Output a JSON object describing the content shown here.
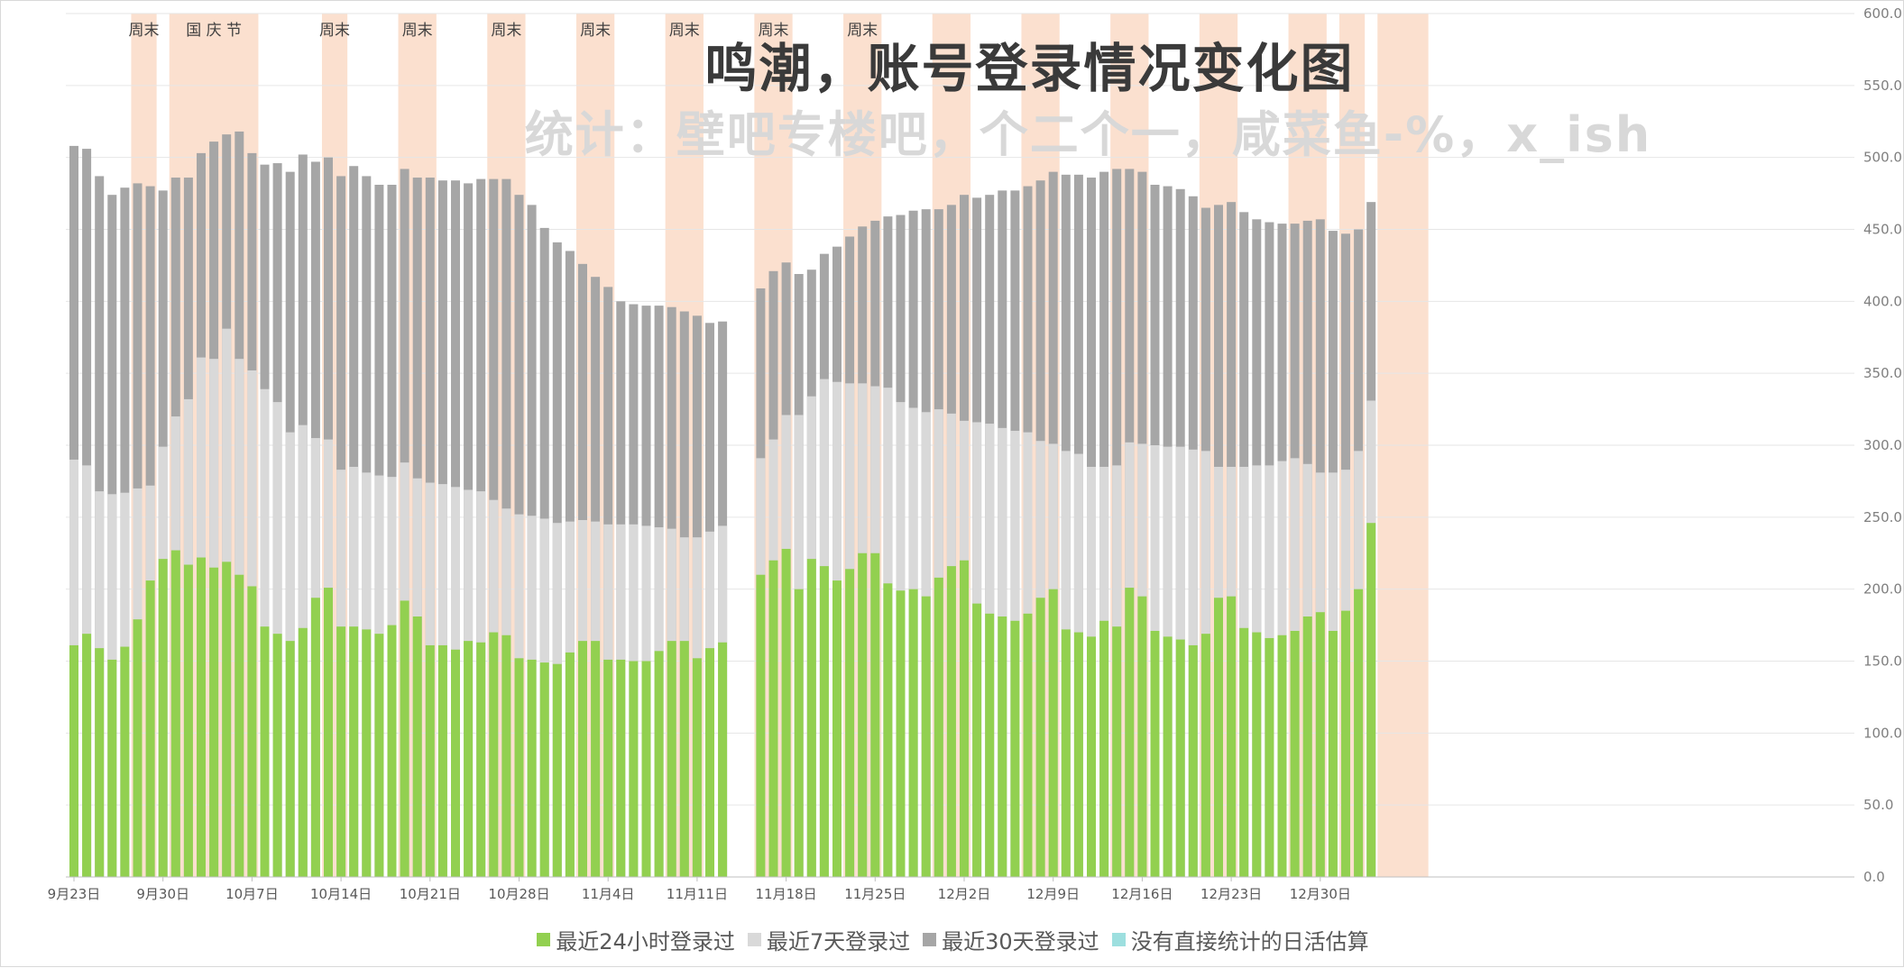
{
  "chart_data": {
    "type": "bar",
    "stacked": true,
    "title": "鸣潮，账号登录情况变化图",
    "subtitle": "统计：壁吧专楼吧，个二个一，咸菜鱼-%，x_ish",
    "x_start_date": "9月23日",
    "x_tick_labels": [
      "9月23日",
      "9月30日",
      "10月7日",
      "10月14日",
      "10月21日",
      "10月28日",
      "11月4日",
      "11月11日",
      "11月18日",
      "11月25日",
      "12月2日",
      "12月9日",
      "12月16日",
      "12月23日",
      "12月30日"
    ],
    "y_tick_labels": [
      "0.0",
      "50.0",
      "100.0",
      "150.0",
      "200.0",
      "250.0",
      "300.0",
      "350.0",
      "400.0",
      "450.0",
      "500.0",
      "550.0",
      "600.0"
    ],
    "ylim": [
      0,
      600
    ],
    "grid": true,
    "legend_position": "bottom",
    "series": [
      {
        "name": "最近24小时登录过",
        "color": "#92d050",
        "values": [
          161,
          169,
          159,
          151,
          160,
          179,
          206,
          221,
          227,
          217,
          222,
          215,
          219,
          210,
          202,
          174,
          169,
          164,
          173,
          194,
          201,
          174,
          174,
          172,
          169,
          175,
          192,
          181,
          161,
          161,
          158,
          164,
          163,
          170,
          168,
          152,
          151,
          149,
          148,
          156,
          164,
          164,
          151,
          151,
          150,
          150,
          157,
          164,
          164,
          152,
          159,
          163,
          null,
          null,
          210,
          220,
          228,
          200,
          221,
          216,
          206,
          214,
          225,
          225,
          204,
          199,
          200,
          195,
          208,
          216,
          220,
          190,
          183,
          181,
          178,
          183,
          194,
          200,
          172,
          170,
          167,
          178,
          174,
          201,
          195,
          171,
          167,
          165,
          161,
          169,
          194,
          195,
          173,
          170,
          166,
          168,
          171,
          181,
          184,
          171,
          185,
          200,
          246
        ]
      },
      {
        "name": "最近7天登录过",
        "color": "#d9d9d9",
        "values": [
          290,
          286,
          268,
          266,
          267,
          270,
          272,
          299,
          320,
          332,
          361,
          360,
          381,
          360,
          352,
          339,
          330,
          309,
          314,
          305,
          304,
          283,
          285,
          281,
          279,
          278,
          288,
          277,
          274,
          273,
          271,
          269,
          268,
          262,
          256,
          252,
          251,
          249,
          246,
          247,
          248,
          247,
          245,
          245,
          245,
          244,
          243,
          242,
          236,
          236,
          240,
          244,
          null,
          null,
          291,
          304,
          321,
          321,
          334,
          346,
          344,
          343,
          343,
          341,
          340,
          330,
          326,
          323,
          325,
          322,
          317,
          316,
          315,
          312,
          310,
          309,
          303,
          301,
          296,
          294,
          285,
          285,
          286,
          302,
          301,
          300,
          299,
          299,
          297,
          296,
          285,
          285,
          285,
          286,
          286,
          289,
          291,
          287,
          281,
          281,
          283,
          296,
          331
        ]
      },
      {
        "name": "最近30天登录过",
        "color": "#a6a6a6",
        "values": [
          508,
          506,
          487,
          474,
          479,
          482,
          480,
          477,
          486,
          486,
          503,
          511,
          516,
          518,
          503,
          495,
          496,
          490,
          502,
          497,
          500,
          487,
          494,
          487,
          481,
          481,
          492,
          486,
          486,
          484,
          484,
          482,
          485,
          485,
          485,
          474,
          467,
          451,
          441,
          435,
          426,
          417,
          410,
          400,
          398,
          397,
          397,
          396,
          393,
          390,
          385,
          386,
          null,
          null,
          409,
          421,
          427,
          419,
          422,
          433,
          438,
          445,
          452,
          456,
          459,
          460,
          463,
          464,
          464,
          467,
          474,
          472,
          474,
          477,
          477,
          480,
          484,
          490,
          488,
          488,
          486,
          490,
          492,
          492,
          490,
          481,
          480,
          478,
          473,
          465,
          467,
          469,
          462,
          457,
          455,
          454,
          454,
          456,
          457,
          449,
          447,
          450,
          469
        ]
      },
      {
        "name": "没有直接统计的日活估算",
        "color": "#9ddfdf",
        "values": []
      }
    ],
    "annotations": [
      {
        "label": "周末",
        "band_day_start": 5,
        "band_day_end": 6
      },
      {
        "label": "国 庆 节",
        "band_day_start": 8,
        "band_day_end": 14
      },
      {
        "label": "周末",
        "band_day_start": 20,
        "band_day_end": 21
      },
      {
        "label": "周末",
        "band_day_start": 26,
        "band_day_end": 28
      },
      {
        "label": "周末",
        "band_day_start": 33,
        "band_day_end": 35
      },
      {
        "label": "周末",
        "band_day_start": 40,
        "band_day_end": 42
      },
      {
        "label": "周末",
        "band_day_start": 47,
        "band_day_end": 49
      },
      {
        "label": "周末",
        "band_day_start": 54,
        "band_day_end": 56
      },
      {
        "label": "周末",
        "band_day_start": 61,
        "band_day_end": 63
      },
      {
        "label": "",
        "band_day_start": 68,
        "band_day_end": 70
      },
      {
        "label": "",
        "band_day_start": 75,
        "band_day_end": 77
      },
      {
        "label": "",
        "band_day_start": 82,
        "band_day_end": 84
      },
      {
        "label": "",
        "band_day_start": 89,
        "band_day_end": 91
      },
      {
        "label": "",
        "band_day_start": 96,
        "band_day_end": 98
      },
      {
        "label": "",
        "band_day_start": 100,
        "band_day_end": 101
      },
      {
        "label": "",
        "band_day_start": 103,
        "band_day_end": 106
      }
    ],
    "band_color": "#fbe0cf"
  }
}
